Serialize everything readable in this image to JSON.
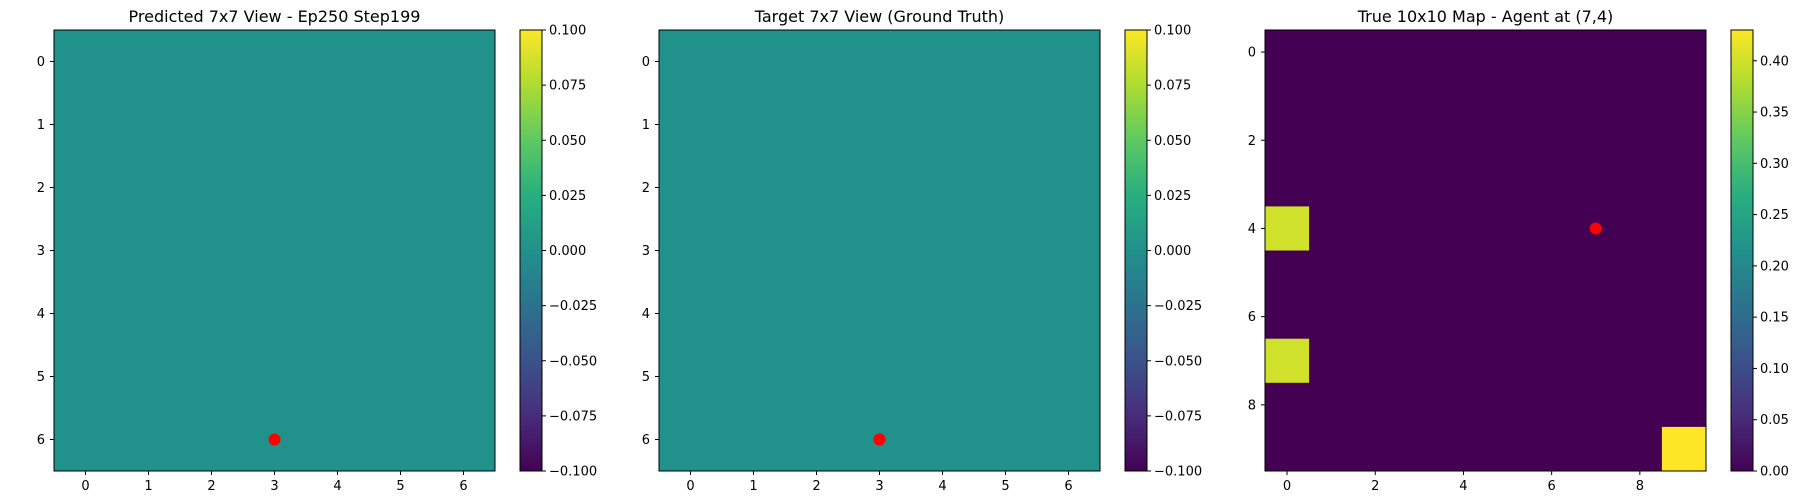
{
  "chart_data": [
    {
      "type": "heatmap",
      "title": "Predicted 7x7 View - Ep250 Step199",
      "xticks": [
        0,
        1,
        2,
        3,
        4,
        5,
        6
      ],
      "yticks": [
        0,
        1,
        2,
        3,
        4,
        5,
        6
      ],
      "grid": [
        [
          0,
          0,
          0,
          0,
          0,
          0,
          0
        ],
        [
          0,
          0,
          0,
          0,
          0,
          0,
          0
        ],
        [
          0,
          0,
          0,
          0,
          0,
          0,
          0
        ],
        [
          0,
          0,
          0,
          0,
          0,
          0,
          0
        ],
        [
          0,
          0,
          0,
          0,
          0,
          0,
          0
        ],
        [
          0,
          0,
          0,
          0,
          0,
          0,
          0
        ],
        [
          0,
          0,
          0,
          0,
          0,
          0,
          0
        ]
      ],
      "vmin": -0.1,
      "vmax": 0.1,
      "colorbar_ticks": [
        "0.100",
        "0.075",
        "0.050",
        "0.025",
        "0.000",
        "−0.025",
        "−0.050",
        "−0.075",
        "−0.100"
      ],
      "colorbar_tick_values": [
        0.1,
        0.075,
        0.05,
        0.025,
        0.0,
        -0.025,
        -0.05,
        -0.075,
        -0.1
      ],
      "colormap": "viridis",
      "marker": {
        "x": 3,
        "y": 6,
        "color": "#ff0000"
      }
    },
    {
      "type": "heatmap",
      "title": "Target 7x7 View (Ground Truth)",
      "xticks": [
        0,
        1,
        2,
        3,
        4,
        5,
        6
      ],
      "yticks": [
        0,
        1,
        2,
        3,
        4,
        5,
        6
      ],
      "grid": [
        [
          0,
          0,
          0,
          0,
          0,
          0,
          0
        ],
        [
          0,
          0,
          0,
          0,
          0,
          0,
          0
        ],
        [
          0,
          0,
          0,
          0,
          0,
          0,
          0
        ],
        [
          0,
          0,
          0,
          0,
          0,
          0,
          0
        ],
        [
          0,
          0,
          0,
          0,
          0,
          0,
          0
        ],
        [
          0,
          0,
          0,
          0,
          0,
          0,
          0
        ],
        [
          0,
          0,
          0,
          0,
          0,
          0,
          0
        ]
      ],
      "vmin": -0.1,
      "vmax": 0.1,
      "colorbar_ticks": [
        "0.100",
        "0.075",
        "0.050",
        "0.025",
        "0.000",
        "−0.025",
        "−0.050",
        "−0.075",
        "−0.100"
      ],
      "colorbar_tick_values": [
        0.1,
        0.075,
        0.05,
        0.025,
        0.0,
        -0.025,
        -0.05,
        -0.075,
        -0.1
      ],
      "colormap": "viridis",
      "marker": {
        "x": 3,
        "y": 6,
        "color": "#ff0000"
      }
    },
    {
      "type": "heatmap",
      "title": "True 10x10 Map - Agent at (7,4)",
      "xticks": [
        0,
        2,
        4,
        6,
        8
      ],
      "yticks": [
        0,
        2,
        4,
        6,
        8
      ],
      "grid": [
        [
          0,
          0,
          0,
          0,
          0,
          0,
          0,
          0,
          0,
          0
        ],
        [
          0,
          0,
          0,
          0,
          0,
          0,
          0,
          0,
          0,
          0
        ],
        [
          0,
          0,
          0,
          0,
          0,
          0,
          0,
          0,
          0,
          0
        ],
        [
          0,
          0,
          0,
          0,
          0,
          0,
          0,
          0,
          0,
          0
        ],
        [
          0.4,
          0,
          0,
          0,
          0,
          0,
          0,
          0,
          0,
          0
        ],
        [
          0,
          0,
          0,
          0,
          0,
          0,
          0,
          0,
          0,
          0
        ],
        [
          0,
          0,
          0,
          0,
          0,
          0,
          0,
          0,
          0,
          0
        ],
        [
          0.4,
          0,
          0,
          0,
          0,
          0,
          0,
          0,
          0,
          0
        ],
        [
          0,
          0,
          0,
          0,
          0,
          0,
          0,
          0,
          0,
          0
        ],
        [
          0,
          0,
          0,
          0,
          0,
          0,
          0,
          0,
          0,
          0.43
        ]
      ],
      "vmin": 0.0,
      "vmax": 0.43,
      "colorbar_ticks": [
        "0.40",
        "0.35",
        "0.30",
        "0.25",
        "0.20",
        "0.15",
        "0.10",
        "0.05",
        "0.00"
      ],
      "colorbar_tick_values": [
        0.4,
        0.35,
        0.3,
        0.25,
        0.2,
        0.15,
        0.1,
        0.05,
        0.0
      ],
      "colormap": "viridis",
      "marker": {
        "x": 7,
        "y": 4,
        "color": "#ff0000"
      }
    }
  ]
}
